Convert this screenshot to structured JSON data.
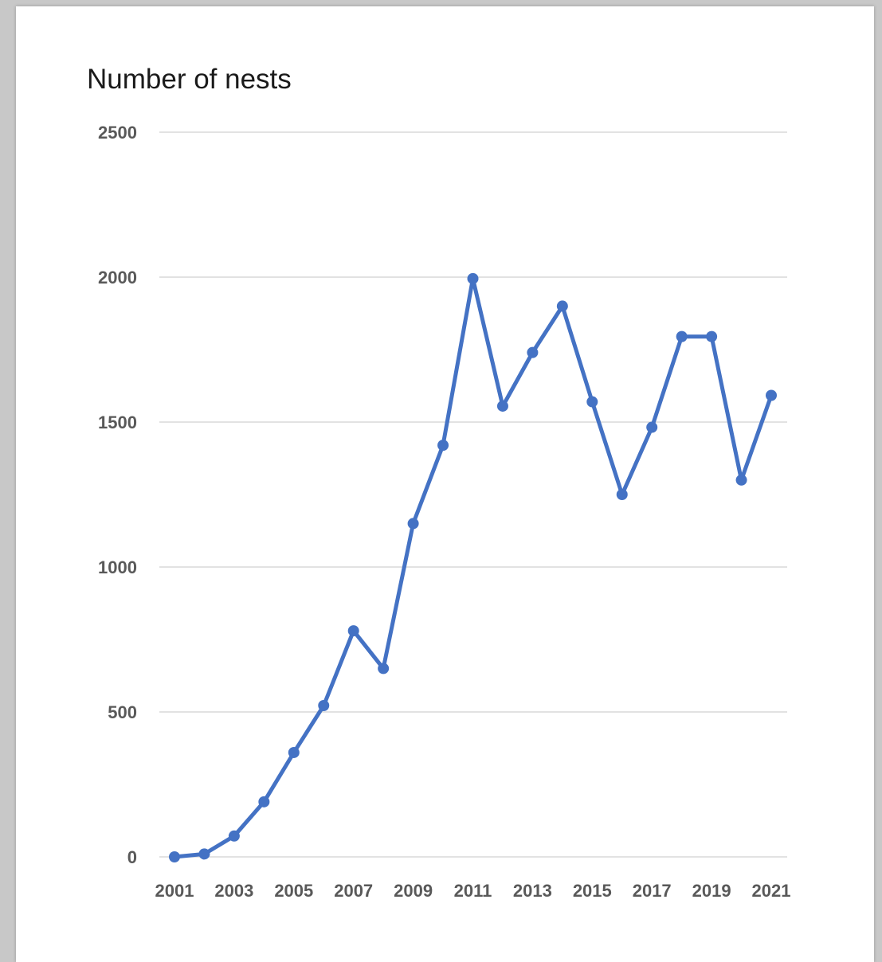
{
  "chart_data": {
    "type": "line",
    "title": "Number of nests",
    "xlabel": "",
    "ylabel": "",
    "x": [
      2001,
      2002,
      2003,
      2004,
      2005,
      2006,
      2007,
      2008,
      2009,
      2010,
      2011,
      2012,
      2013,
      2014,
      2015,
      2016,
      2017,
      2018,
      2019,
      2020,
      2021
    ],
    "x_tick_labels": [
      "2001",
      "2003",
      "2005",
      "2007",
      "2009",
      "2011",
      "2013",
      "2015",
      "2017",
      "2019",
      "2021"
    ],
    "y_tick_labels": [
      "0",
      "500",
      "1000",
      "1500",
      "2000",
      "2500"
    ],
    "ylim": [
      0,
      2500
    ],
    "grid": true,
    "legend": "none",
    "series": [
      {
        "values": [
          0,
          10,
          72,
          190,
          360,
          522,
          780,
          650,
          1150,
          1420,
          1995,
          1555,
          1740,
          1900,
          1570,
          1250,
          1482,
          1795,
          1795,
          1300,
          1592
        ],
        "color": "#4472C4"
      }
    ]
  }
}
